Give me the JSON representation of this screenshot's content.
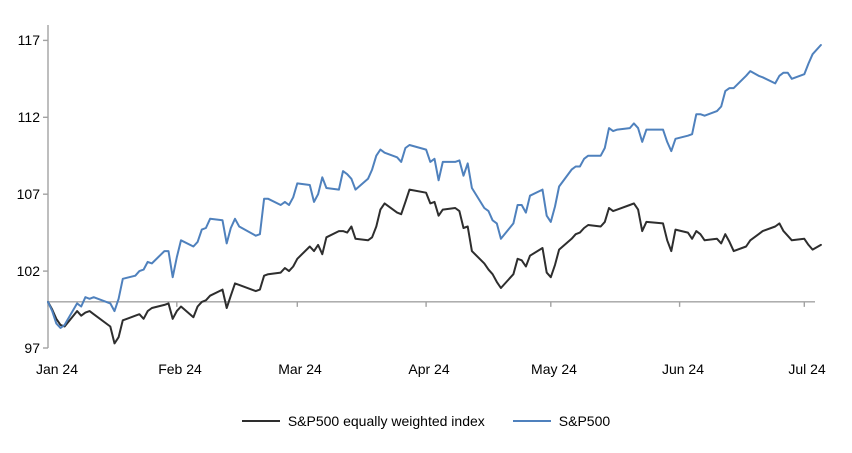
{
  "chart_data": {
    "type": "line",
    "title": "",
    "axis_color": "#a2a2a2",
    "background_color": "#ffffff",
    "y_axis": {
      "ticks": [
        97,
        102,
        107,
        112,
        117
      ],
      "range": [
        97,
        118
      ],
      "grid": false
    },
    "x_axis": {
      "labels": [
        "Jan 24",
        "Feb 24",
        "Mar 24",
        "Apr 24",
        "May 24",
        "Jun 24",
        "Jul 24"
      ],
      "tick_day_offsets": [
        0,
        31,
        60,
        91,
        121,
        152,
        182
      ],
      "range_days": [
        0,
        186
      ],
      "baseline_value": 100,
      "note": "x axis line drawn at index value 100 with month tick marks; labels positioned low"
    },
    "legend_position": "bottom-center",
    "x_day_offsets": [
      0,
      1,
      2,
      3,
      4,
      7,
      8,
      9,
      10,
      11,
      15,
      16,
      17,
      18,
      21,
      22,
      23,
      24,
      25,
      28,
      29,
      30,
      31,
      32,
      35,
      36,
      37,
      38,
      39,
      42,
      43,
      44,
      45,
      46,
      50,
      51,
      52,
      53,
      56,
      57,
      58,
      59,
      60,
      63,
      64,
      65,
      66,
      67,
      70,
      71,
      72,
      73,
      74,
      77,
      78,
      79,
      80,
      81,
      84,
      85,
      86,
      87,
      91,
      92,
      93,
      94,
      95,
      98,
      99,
      100,
      101,
      102,
      105,
      106,
      107,
      108,
      109,
      112,
      113,
      114,
      115,
      116,
      119,
      120,
      121,
      122,
      123,
      126,
      127,
      128,
      129,
      130,
      133,
      134,
      135,
      136,
      137,
      140,
      141,
      142,
      143,
      144,
      148,
      149,
      150,
      151,
      154,
      155,
      156,
      157,
      158,
      161,
      162,
      163,
      164,
      165,
      168,
      169,
      171,
      172,
      175,
      176,
      177,
      178,
      179,
      182,
      183,
      184,
      186
    ],
    "series": [
      {
        "name": "S&P500 equally weighted index",
        "color": "#2e2e2e",
        "data_name": "sp500-equal-weight-line",
        "values": [
          100,
          99.5,
          98.9,
          98.5,
          98.4,
          99.4,
          99.1,
          99.3,
          99.4,
          99.2,
          98.4,
          97.3,
          97.7,
          98.8,
          99.1,
          99.2,
          98.9,
          99.4,
          99.6,
          99.8,
          99.9,
          98.9,
          99.4,
          99.7,
          99.0,
          99.7,
          100.0,
          100.1,
          100.4,
          100.8,
          99.6,
          100.4,
          101.2,
          101.1,
          100.7,
          100.8,
          101.7,
          101.8,
          101.9,
          102.2,
          102.0,
          102.3,
          102.8,
          103.6,
          103.3,
          103.7,
          103.1,
          104.2,
          104.6,
          104.6,
          104.5,
          104.9,
          104.1,
          104.0,
          104.2,
          104.9,
          106.0,
          106.4,
          105.8,
          105.7,
          106.5,
          107.3,
          107.1,
          106.4,
          106.5,
          105.6,
          106.0,
          106.1,
          105.9,
          104.8,
          104.9,
          103.3,
          102.5,
          102.1,
          101.8,
          101.3,
          100.9,
          101.8,
          102.8,
          102.7,
          102.3,
          103.0,
          103.5,
          101.9,
          101.6,
          102.4,
          103.4,
          104.1,
          104.4,
          104.5,
          104.8,
          105.0,
          104.9,
          105.2,
          106.1,
          105.9,
          106.0,
          106.3,
          106.4,
          106.0,
          104.6,
          105.2,
          105.1,
          104.0,
          103.3,
          104.7,
          104.5,
          104.1,
          104.6,
          104.4,
          104.0,
          104.1,
          103.8,
          104.4,
          103.9,
          103.3,
          103.6,
          104.0,
          104.4,
          104.6,
          104.9,
          105.1,
          104.6,
          104.3,
          104.0,
          104.1,
          103.7,
          103.4,
          103.7
        ]
      },
      {
        "name": "S&P500",
        "color": "#4f81bd",
        "data_name": "sp500-line",
        "values": [
          100,
          99.4,
          98.6,
          98.3,
          98.5,
          99.9,
          99.7,
          100.3,
          100.2,
          100.3,
          99.9,
          99.4,
          100.2,
          101.5,
          101.7,
          102.0,
          102.1,
          102.6,
          102.5,
          103.3,
          103.3,
          101.6,
          102.9,
          104.0,
          103.6,
          103.9,
          104.7,
          104.8,
          105.4,
          105.3,
          103.8,
          104.8,
          105.4,
          104.9,
          104.3,
          104.4,
          106.7,
          106.7,
          106.3,
          106.5,
          106.3,
          106.8,
          107.7,
          107.6,
          106.5,
          107.0,
          108.1,
          107.4,
          107.3,
          108.5,
          108.3,
          108.0,
          107.3,
          108.0,
          108.6,
          109.5,
          109.9,
          109.7,
          109.4,
          109.1,
          110.0,
          110.2,
          109.9,
          109.1,
          109.3,
          107.9,
          109.1,
          109.1,
          109.2,
          108.2,
          109.0,
          107.4,
          106.1,
          105.9,
          105.3,
          105.1,
          104.1,
          105.1,
          106.3,
          106.3,
          105.8,
          106.9,
          107.3,
          105.6,
          105.2,
          106.2,
          107.5,
          108.6,
          108.8,
          108.8,
          109.3,
          109.5,
          109.5,
          110.0,
          111.3,
          111.1,
          111.2,
          111.3,
          111.6,
          111.3,
          110.4,
          111.2,
          111.2,
          110.4,
          109.8,
          110.6,
          110.8,
          110.9,
          112.2,
          112.2,
          112.1,
          112.4,
          112.7,
          113.7,
          113.9,
          113.9,
          114.7,
          115.0,
          114.7,
          114.6,
          114.2,
          114.7,
          114.9,
          114.9,
          114.5,
          114.8,
          115.5,
          116.1,
          116.7
        ]
      }
    ]
  }
}
